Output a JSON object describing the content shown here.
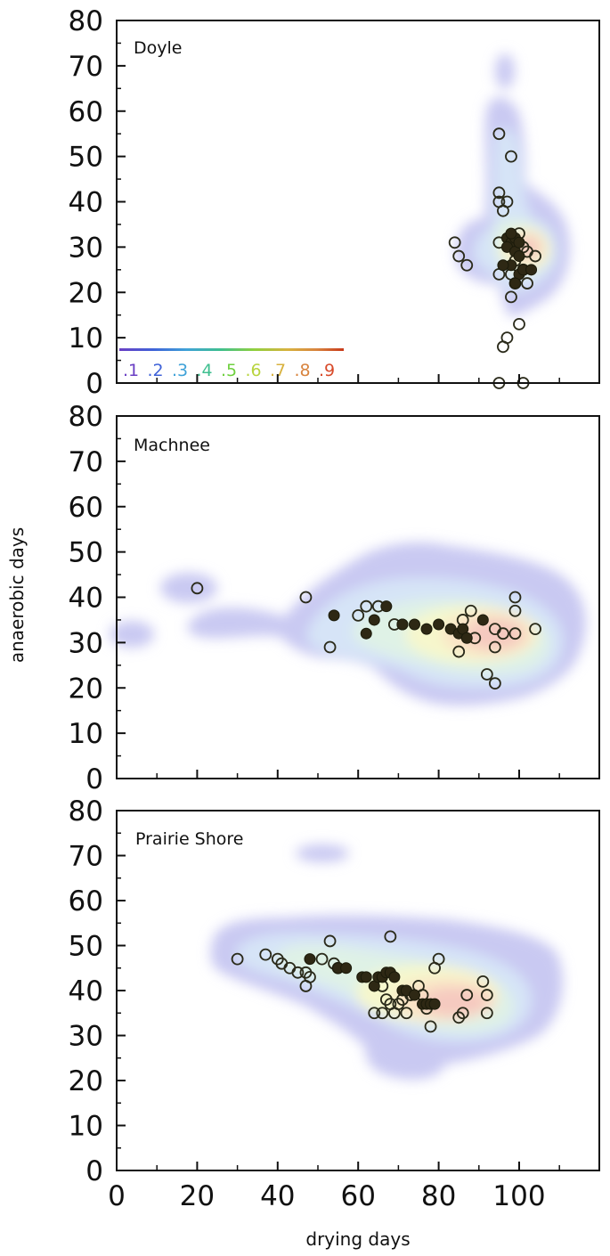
{
  "chart_data": {
    "type": "scatter",
    "xlabel": "drying days",
    "ylabel": "anaerobic days",
    "xlim": [
      0,
      120
    ],
    "ylim": [
      0,
      80
    ],
    "x_ticks": [
      "0",
      "20",
      "40",
      "60",
      "80",
      "100"
    ],
    "y_ticks": [
      "0",
      "10",
      "20",
      "30",
      "40",
      "50",
      "60",
      "70",
      "80"
    ],
    "colorbar": {
      "labels": [
        ".1",
        ".2",
        ".3",
        ".4",
        ".5",
        ".6",
        ".7",
        ".8",
        ".9"
      ],
      "colors": [
        "#6a3fc4",
        "#3f62d8",
        "#3fa2d8",
        "#3fbf8f",
        "#6fd03f",
        "#b8d43f",
        "#d8b23f",
        "#d8843f",
        "#d84a2a"
      ]
    },
    "density_colors": {
      "outer": "#c9c9f2",
      "mid1": "#d6e4f7",
      "mid2": "#dff2e6",
      "mid3": "#f6f7cc",
      "mid4": "#fae3c6",
      "core": "#f5c9c0"
    },
    "panels": [
      {
        "title": "Doyle",
        "open_points": [
          [
            95,
            55
          ],
          [
            98,
            50
          ],
          [
            95,
            42
          ],
          [
            95,
            40
          ],
          [
            97,
            40
          ],
          [
            96,
            38
          ],
          [
            84,
            31
          ],
          [
            85,
            28
          ],
          [
            87,
            26
          ],
          [
            95,
            31
          ],
          [
            100,
            33
          ],
          [
            101,
            30
          ],
          [
            102,
            29
          ],
          [
            104,
            28
          ],
          [
            99,
            27
          ],
          [
            101,
            25
          ],
          [
            98,
            24
          ],
          [
            95,
            24
          ],
          [
            99,
            22
          ],
          [
            102,
            22
          ],
          [
            98,
            19
          ],
          [
            100,
            13
          ],
          [
            97,
            10
          ],
          [
            96,
            8
          ],
          [
            95,
            0
          ],
          [
            101,
            0
          ]
        ],
        "filled_points": [
          [
            97,
            32
          ],
          [
            98,
            31
          ],
          [
            99,
            32
          ],
          [
            97,
            30
          ],
          [
            99,
            29
          ],
          [
            100,
            28
          ],
          [
            98,
            26
          ],
          [
            96,
            26
          ],
          [
            100,
            24
          ],
          [
            101,
            25
          ],
          [
            103,
            25
          ],
          [
            99,
            22
          ],
          [
            98,
            33
          ],
          [
            100,
            31
          ]
        ]
      },
      {
        "title": "Machnee",
        "open_points": [
          [
            20,
            42
          ],
          [
            47,
            40
          ],
          [
            53,
            29
          ],
          [
            60,
            36
          ],
          [
            62,
            38
          ],
          [
            65,
            38
          ],
          [
            69,
            34
          ],
          [
            86,
            35
          ],
          [
            88,
            37
          ],
          [
            85,
            28
          ],
          [
            92,
            23
          ],
          [
            94,
            21
          ],
          [
            94,
            29
          ],
          [
            94,
            33
          ],
          [
            96,
            32
          ],
          [
            99,
            32
          ],
          [
            99,
            37
          ],
          [
            99,
            40
          ],
          [
            104,
            33
          ],
          [
            89,
            31
          ]
        ],
        "filled_points": [
          [
            54,
            36
          ],
          [
            62,
            32
          ],
          [
            64,
            35
          ],
          [
            67,
            38
          ],
          [
            71,
            34
          ],
          [
            71,
            34
          ],
          [
            74,
            34
          ],
          [
            77,
            33
          ],
          [
            80,
            34
          ],
          [
            83,
            33
          ],
          [
            85,
            32
          ],
          [
            86,
            33
          ],
          [
            91,
            35
          ],
          [
            87,
            31
          ]
        ]
      },
      {
        "title": "Prairie Shore",
        "open_points": [
          [
            30,
            47
          ],
          [
            37,
            48
          ],
          [
            40,
            47
          ],
          [
            41,
            46
          ],
          [
            43,
            45
          ],
          [
            45,
            44
          ],
          [
            47,
            44
          ],
          [
            48,
            43
          ],
          [
            47,
            41
          ],
          [
            51,
            47
          ],
          [
            53,
            51
          ],
          [
            54,
            46
          ],
          [
            55,
            45
          ],
          [
            66,
            41
          ],
          [
            67,
            38
          ],
          [
            68,
            37
          ],
          [
            69,
            35
          ],
          [
            70,
            37
          ],
          [
            71,
            38
          ],
          [
            72,
            35
          ],
          [
            73,
            39
          ],
          [
            75,
            41
          ],
          [
            76,
            39
          ],
          [
            77,
            36
          ],
          [
            78,
            32
          ],
          [
            79,
            45
          ],
          [
            80,
            47
          ],
          [
            68,
            52
          ],
          [
            85,
            34
          ],
          [
            86,
            35
          ],
          [
            87,
            39
          ],
          [
            91,
            42
          ],
          [
            92,
            39
          ],
          [
            92,
            35
          ],
          [
            64,
            35
          ],
          [
            66,
            35
          ]
        ],
        "filled_points": [
          [
            48,
            47
          ],
          [
            55,
            45
          ],
          [
            57,
            45
          ],
          [
            61,
            43
          ],
          [
            62,
            43
          ],
          [
            64,
            41
          ],
          [
            65,
            43
          ],
          [
            66,
            43
          ],
          [
            67,
            44
          ],
          [
            68,
            44
          ],
          [
            69,
            43
          ],
          [
            71,
            40
          ],
          [
            72,
            40
          ],
          [
            74,
            39
          ],
          [
            76,
            37
          ],
          [
            77,
            37
          ],
          [
            78,
            37
          ],
          [
            79,
            37
          ]
        ]
      }
    ]
  }
}
